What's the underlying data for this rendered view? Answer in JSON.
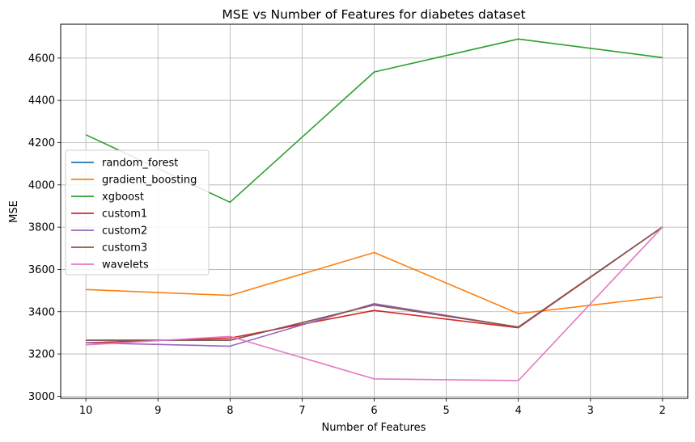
{
  "chart_data": {
    "type": "line",
    "title": "MSE vs Number of Features for diabetes dataset",
    "xlabel": "Number of Features",
    "ylabel": "MSE",
    "x": [
      10,
      8,
      6,
      4,
      2
    ],
    "x_ticks": [
      10,
      9,
      8,
      7,
      6,
      5,
      4,
      3,
      2
    ],
    "x_inverted": true,
    "xlim": [
      10.35,
      1.65
    ],
    "ylim": [
      2990,
      4760
    ],
    "y_ticks": [
      3000,
      3200,
      3400,
      3600,
      3800,
      4000,
      4200,
      4400,
      4600
    ],
    "grid": true,
    "legend_position": "center-left",
    "series": [
      {
        "name": "random_forest",
        "color": "#1f77b4",
        "values": [
          3265,
          3265,
          3432,
          3327,
          3801
        ]
      },
      {
        "name": "gradient_boosting",
        "color": "#ff7f0e",
        "values": [
          3505,
          3477,
          3680,
          3391,
          3470
        ]
      },
      {
        "name": "xgboost",
        "color": "#2ca02c",
        "values": [
          4237,
          3918,
          4534,
          4690,
          4602
        ]
      },
      {
        "name": "custom1",
        "color": "#d62728",
        "values": [
          3253,
          3275,
          3406,
          3324,
          3801
        ]
      },
      {
        "name": "custom2",
        "color": "#9467bd",
        "values": [
          3253,
          3237,
          3438,
          3327,
          3801
        ]
      },
      {
        "name": "custom3",
        "color": "#8c564b",
        "values": [
          3265,
          3265,
          3432,
          3327,
          3801
        ]
      },
      {
        "name": "wavelets",
        "color": "#e377c2",
        "values": [
          3243,
          3283,
          3082,
          3074,
          3801
        ]
      }
    ]
  }
}
